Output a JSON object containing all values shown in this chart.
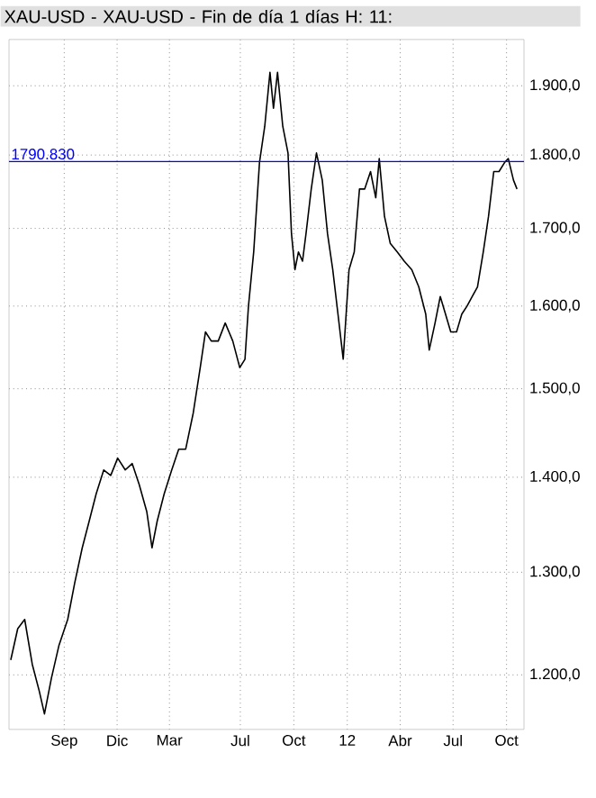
{
  "chart_data": {
    "type": "line",
    "title": "XAU-USD - XAU-USD - Fin de día 1 días H: 11:",
    "x": [
      "2010-06-01",
      "2010-06-13",
      "2010-06-25",
      "2010-07-08",
      "2010-07-20",
      "2010-07-29",
      "2010-08-10",
      "2010-08-23",
      "2010-09-07",
      "2010-09-19",
      "2010-10-02",
      "2010-10-14",
      "2010-10-26",
      "2010-11-08",
      "2010-11-20",
      "2010-12-02",
      "2010-12-15",
      "2010-12-27",
      "2011-01-08",
      "2011-01-21",
      "2011-01-30",
      "2011-02-08",
      "2011-02-20",
      "2011-03-05",
      "2011-03-17",
      "2011-03-29",
      "2011-04-11",
      "2011-04-23",
      "2011-05-02",
      "2011-05-12",
      "2011-05-24",
      "2011-06-05",
      "2011-06-18",
      "2011-06-30",
      "2011-07-09",
      "2011-07-15",
      "2011-07-24",
      "2011-08-03",
      "2011-08-12",
      "2011-08-21",
      "2011-08-27",
      "2011-09-03",
      "2011-09-12",
      "2011-09-21",
      "2011-09-27",
      "2011-10-03",
      "2011-10-09",
      "2011-10-16",
      "2011-10-22",
      "2011-10-31",
      "2011-11-09",
      "2011-11-19",
      "2011-11-28",
      "2011-12-07",
      "2011-12-16",
      "2011-12-25",
      "2012-01-04",
      "2012-01-13",
      "2012-01-22",
      "2012-01-31",
      "2012-02-10",
      "2012-02-19",
      "2012-02-25",
      "2012-03-05",
      "2012-03-15",
      "2012-03-27",
      "2012-04-08",
      "2012-04-21",
      "2012-05-03",
      "2012-05-15",
      "2012-05-21",
      "2012-05-31",
      "2012-06-09",
      "2012-06-18",
      "2012-06-27",
      "2012-07-07",
      "2012-07-16",
      "2012-07-25",
      "2012-08-03",
      "2012-08-12",
      "2012-08-22",
      "2012-08-31",
      "2012-09-09",
      "2012-09-18",
      "2012-09-28",
      "2012-10-04",
      "2012-10-13",
      "2012-10-19"
    ],
    "series": [
      {
        "color": "#000000",
        "values": [
          1214,
          1244,
          1253,
          1210,
          1185,
          1164,
          1197,
          1228,
          1253,
          1289,
          1325,
          1353,
          1382,
          1408,
          1402,
          1421,
          1408,
          1415,
          1392,
          1363,
          1325,
          1353,
          1382,
          1408,
          1431,
          1431,
          1472,
          1525,
          1568,
          1557,
          1557,
          1579,
          1557,
          1525,
          1535,
          1600,
          1669,
          1790,
          1841,
          1920,
          1867,
          1920,
          1841,
          1803,
          1693,
          1646,
          1669,
          1657,
          1693,
          1753,
          1803,
          1765,
          1693,
          1646,
          1590,
          1535,
          1646,
          1669,
          1753,
          1753,
          1777,
          1741,
          1795,
          1716,
          1680,
          1669,
          1657,
          1646,
          1624,
          1590,
          1546,
          1579,
          1612,
          1590,
          1568,
          1568,
          1590,
          1600,
          1612,
          1624,
          1669,
          1716,
          1777,
          1777,
          1790,
          1795,
          1765,
          1753
        ]
      }
    ],
    "log": "y",
    "xlim": [
      "2010-05-29",
      "2012-10-31"
    ],
    "ylim": [
      1150,
      1970
    ],
    "xticks": [
      {
        "value": "2010-09-01",
        "label": "Sep"
      },
      {
        "value": "2010-12-01",
        "label": "Dic"
      },
      {
        "value": "2011-03-01",
        "label": "Mar"
      },
      {
        "value": "2011-07-01",
        "label": "Jul"
      },
      {
        "value": "2011-10-01",
        "label": "Oct"
      },
      {
        "value": "2012-01-01",
        "label": "12"
      },
      {
        "value": "2012-04-01",
        "label": "Abr"
      },
      {
        "value": "2012-07-01",
        "label": "Jul"
      },
      {
        "value": "2012-10-01",
        "label": "Oct"
      }
    ],
    "yticks": [
      {
        "value": 1200,
        "label": "1.200,0"
      },
      {
        "value": 1300,
        "label": "1.300,0"
      },
      {
        "value": 1400,
        "label": "1.400,0"
      },
      {
        "value": 1500,
        "label": "1.500,0"
      },
      {
        "value": 1600,
        "label": "1.600,0"
      },
      {
        "value": 1700,
        "label": "1.700,0"
      },
      {
        "value": 1800,
        "label": "1.800,0"
      },
      {
        "value": 1900,
        "label": "1.900,0"
      }
    ],
    "ref_lines": [
      {
        "axis": "y",
        "value": 1790.83,
        "label": "1790.830",
        "color": "#0000ff"
      }
    ],
    "grid": true,
    "line_style": "solid",
    "marker": "none"
  }
}
